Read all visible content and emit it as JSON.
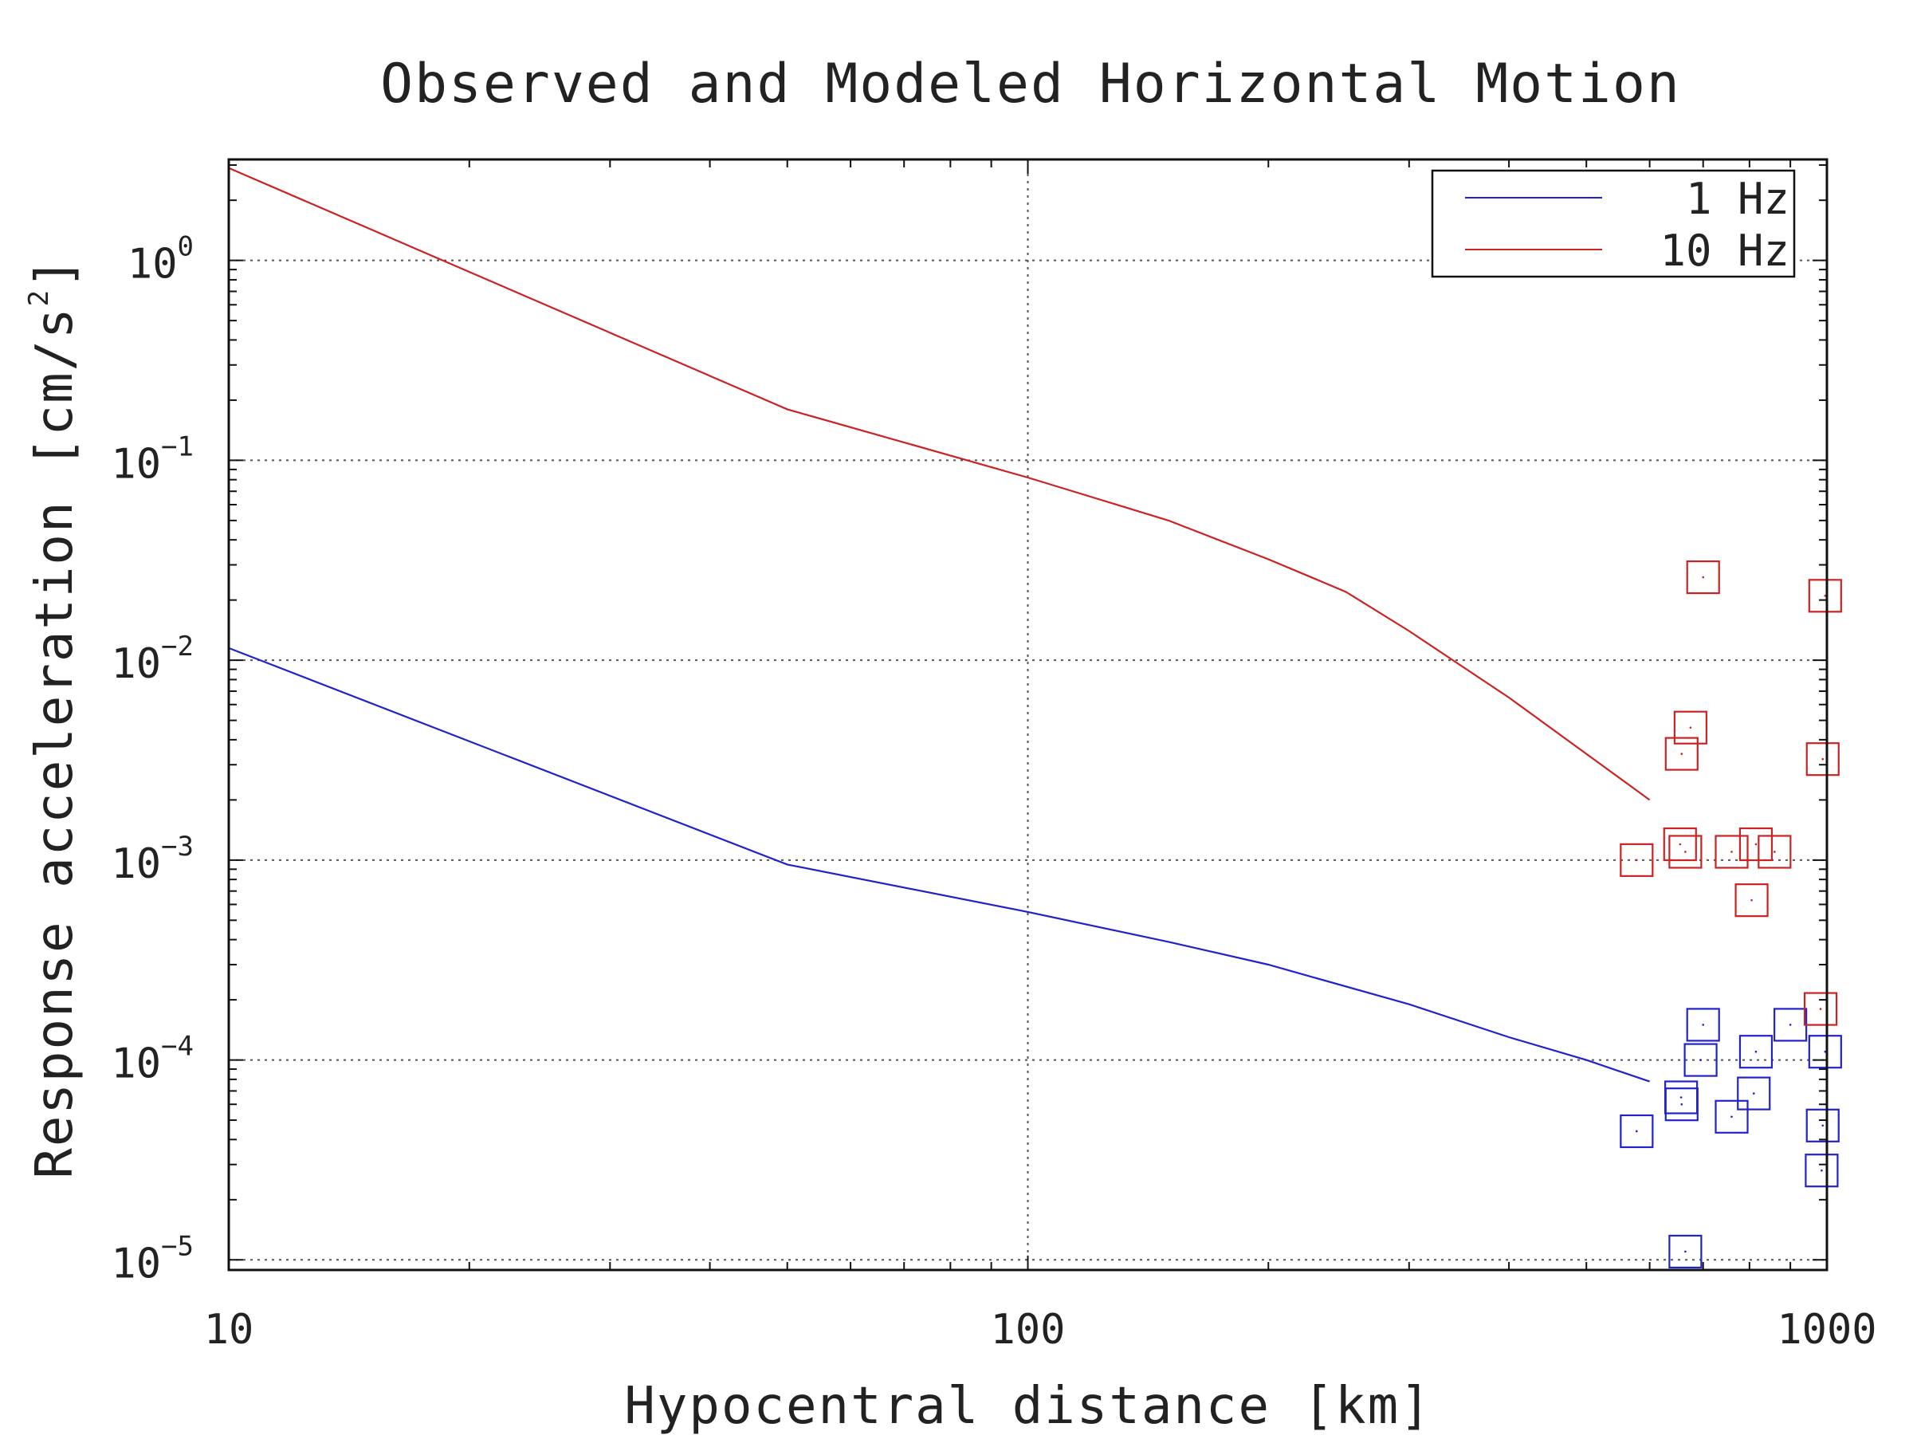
{
  "chart_data": {
    "type": "scatter",
    "title": "Observed and Modeled Horizontal Motion",
    "xlabel": "Hypocentral distance [km]",
    "ylabel_main": "Response acceleration [cm/s",
    "ylabel_sup": "2",
    "ylabel_end": "]",
    "x_scale": "log",
    "y_scale": "log",
    "xlim": [
      10,
      1000
    ],
    "ylim": [
      8.9e-06,
      3.2
    ],
    "grid": true,
    "legend_position": "top-right",
    "x_ticks": [
      {
        "value": 10,
        "label": "10"
      },
      {
        "value": 100,
        "label": "100"
      },
      {
        "value": 1000,
        "label": "1000"
      }
    ],
    "y_ticks": [
      {
        "value": 1,
        "base": "10",
        "exp": "0"
      },
      {
        "value": 0.1,
        "base": "10",
        "exp": "−1"
      },
      {
        "value": 0.01,
        "base": "10",
        "exp": "−2"
      },
      {
        "value": 0.001,
        "base": "10",
        "exp": "−3"
      },
      {
        "value": 0.0001,
        "base": "10",
        "exp": "−4"
      },
      {
        "value": 1e-05,
        "base": "10",
        "exp": "−5"
      }
    ],
    "lines": [
      {
        "name": "1 Hz",
        "color": "#2222cc",
        "x": [
          10,
          50,
          100,
          150,
          200,
          300,
          400,
          500,
          600
        ],
        "y": [
          0.0115,
          0.00095,
          0.00055,
          0.00039,
          0.0003,
          0.00019,
          0.00013,
          0.0001,
          7.8e-05
        ]
      },
      {
        "name": "10 Hz",
        "color": "#cc2222",
        "x": [
          10,
          50,
          100,
          150,
          200,
          250,
          300,
          400,
          500,
          600
        ],
        "y": [
          2.9,
          0.18,
          0.082,
          0.05,
          0.032,
          0.022,
          0.014,
          0.0065,
          0.0034,
          0.002
        ]
      }
    ],
    "scatter": [
      {
        "name": "1 Hz observed",
        "color": "#2222cc",
        "x": [
          578,
          657,
          658,
          665,
          695,
          700,
          760,
          810,
          815,
          900,
          985,
          988,
          995
        ],
        "y": [
          4.4e-05,
          6.5e-05,
          6e-05,
          1.1e-05,
          0.0001,
          0.00015,
          5.2e-05,
          6.8e-05,
          0.00011,
          0.00015,
          2.8e-05,
          4.7e-05,
          0.00011
        ]
      },
      {
        "name": "10 Hz observed",
        "color": "#cc2222",
        "x": [
          578,
          655,
          658,
          665,
          675,
          700,
          760,
          805,
          815,
          860,
          982,
          988,
          995
        ],
        "y": [
          0.001,
          0.0012,
          0.0034,
          0.0011,
          0.0046,
          0.026,
          0.0011,
          0.00063,
          0.0012,
          0.0011,
          0.00018,
          0.0032,
          0.021
        ]
      }
    ],
    "legend": [
      {
        "label": "1 Hz",
        "color": "#2222cc"
      },
      {
        "label": "10 Hz",
        "color": "#cc2222"
      }
    ]
  }
}
